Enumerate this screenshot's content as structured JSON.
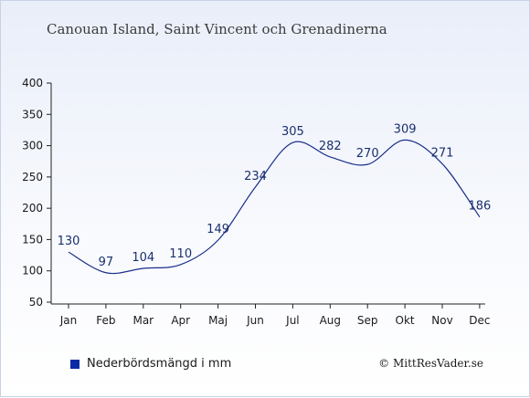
{
  "page": {
    "title": "Canouan Island, Saint Vincent och Grenadinerna",
    "credit": "© MittResVader.se"
  },
  "colors": {
    "series": "#1a2f8a",
    "axis": "#222222",
    "legend_swatch": "#0a2aa6"
  },
  "chart_data": {
    "type": "line",
    "categories": [
      "Jan",
      "Feb",
      "Mar",
      "Apr",
      "Maj",
      "Jun",
      "Jul",
      "Aug",
      "Sep",
      "Okt",
      "Nov",
      "Dec"
    ],
    "series": [
      {
        "name": "Nederbördsmängd i mm",
        "values": [
          130,
          97,
          104,
          110,
          149,
          234,
          305,
          282,
          270,
          309,
          271,
          186
        ]
      }
    ],
    "ylim": [
      50,
      400
    ],
    "yticks": [
      50,
      100,
      150,
      200,
      250,
      300,
      350,
      400
    ],
    "grid": false,
    "legend_position": "bottom-left"
  }
}
